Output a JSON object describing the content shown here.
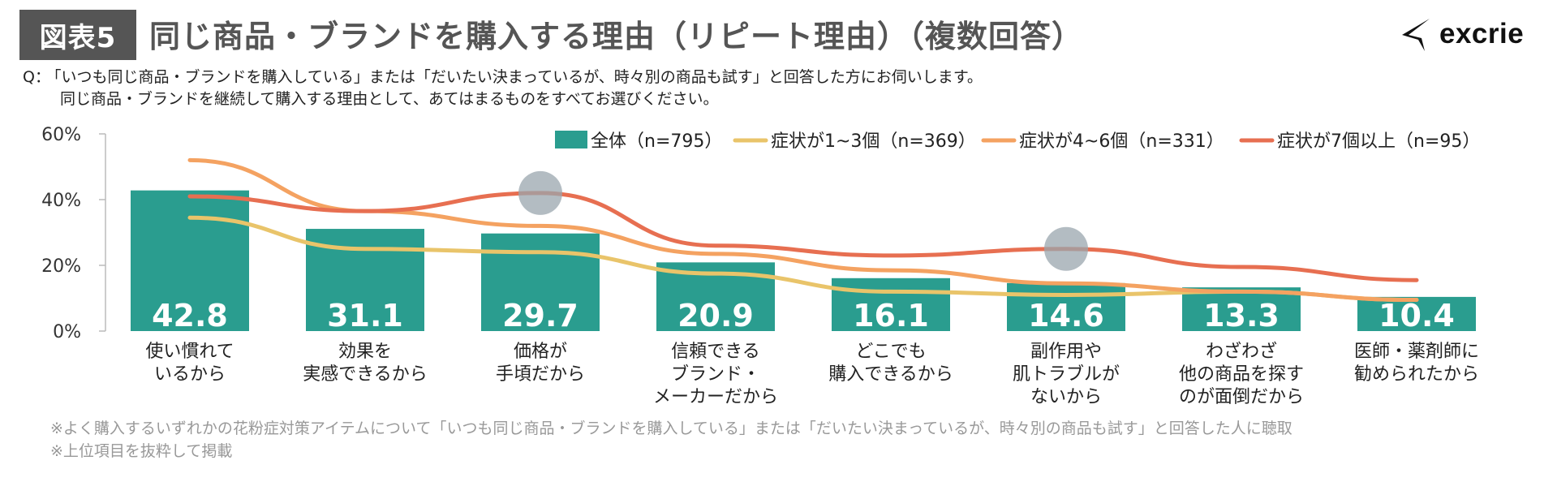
{
  "header": {
    "badge": "図表5",
    "title": "同じ商品・ブランドを購入する理由（リピート理由）（複数回答）",
    "logo_text": "excrie"
  },
  "question": {
    "label": "Q：",
    "line1": "「いつも同じ商品・ブランドを購入している」または「だいたい決まっているが、時々別の商品も試す」と回答した方にお伺いします。",
    "line2": "同じ商品・ブランドを継続して購入する理由として、あてはまるものをすべてお選びください。"
  },
  "notes": [
    "※よく購入するいずれかの花粉症対策アイテムについて「いつも同じ商品・ブランドを購入している」または「だいたい決まっているが、時々別の商品も試す」と回答した人に聴取",
    "※上位項目を抜粋して掲載"
  ],
  "chart_data": {
    "type": "bar",
    "categories": [
      "使い慣れて\nいるから",
      "効果を\n実感できるから",
      "価格が\n手頃だから",
      "信頼できる\nブランド・\nメーカーだから",
      "どこでも\n購入できるから",
      "副作用や\n肌トラブルが\nないから",
      "わざわざ\n他の商品を探す\nのが面倒だから",
      "医師・薬剤師に\n勧められたから"
    ],
    "yticks": [
      "0%",
      "20%",
      "40%",
      "60%"
    ],
    "ylim": [
      0,
      60
    ],
    "bar_series": {
      "name": "全体（n=795）",
      "color": "#2a9d8f",
      "values": [
        42.8,
        31.1,
        29.7,
        20.9,
        16.1,
        14.6,
        13.3,
        10.4
      ],
      "labels": [
        "42.8",
        "31.1",
        "29.7",
        "20.9",
        "16.1",
        "14.6",
        "13.3",
        "10.4"
      ]
    },
    "line_series": [
      {
        "name": "症状が1~3個（n=369）",
        "color": "#e9c46a",
        "values": [
          34.5,
          25.0,
          24.0,
          17.5,
          12.0,
          11.0,
          12.0,
          9.5
        ]
      },
      {
        "name": "症状が4~6個（n=331）",
        "color": "#f4a261",
        "values": [
          52.0,
          36.5,
          32.0,
          23.5,
          18.5,
          14.5,
          12.0,
          9.5
        ]
      },
      {
        "name": "症状が7個以上（n=95）",
        "color": "#e76f51",
        "values": [
          41.0,
          36.5,
          42.0,
          26.0,
          23.0,
          25.0,
          19.5,
          15.5
        ]
      }
    ],
    "highlights": [
      {
        "category_index": 2,
        "value": 42.0
      },
      {
        "category_index": 5,
        "value": 25.0
      }
    ],
    "highlight_color": "#9aa5ad"
  }
}
